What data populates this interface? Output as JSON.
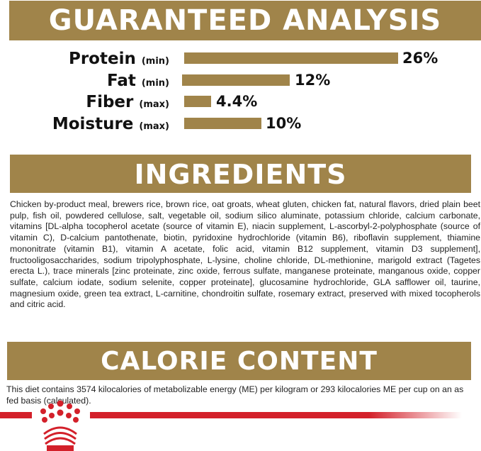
{
  "guaranteed_analysis": {
    "title": "GUARANTEED ANALYSIS",
    "rows": [
      {
        "name": "Protein",
        "qualifier": "(min)",
        "value": "26%",
        "percent": 26
      },
      {
        "name": "Fat",
        "qualifier": "(min)",
        "value": "12%",
        "percent": 12
      },
      {
        "name": "Fiber",
        "qualifier": "(max)",
        "value": "4.4%",
        "percent": 4.4
      },
      {
        "name": "Moisture",
        "qualifier": "(max)",
        "value": "10%",
        "percent": 10
      }
    ],
    "bar_color": "#a0844a"
  },
  "ingredients": {
    "title": "INGREDIENTS",
    "text": "Chicken by-product meal, brewers rice, brown rice, oat groats, wheat gluten, chicken fat, natural flavors, dried plain beet pulp, fish oil, powdered cellulose, salt, vegetable oil, sodium silico aluminate, potassium chloride, calcium carbonate, vitamins [DL-alpha tocopherol acetate (source of vitamin E), niacin supplement, L-ascorbyl-2-polyphosphate (source of vitamin C), D-calcium pantothenate, biotin, pyridoxine hydrochloride (vitamin B6), riboflavin supplement, thiamine mononitrate (vitamin B1), vitamin A acetate, folic acid, vitamin B12 supplement, vitamin D3 supplement], fructooligosaccharides, sodium tripolyphosphate, L-lysine, choline chloride, DL-methionine, marigold extract (Tagetes erecta L.), trace minerals [zinc proteinate, zinc oxide, ferrous sulfate, manganese proteinate, manganous oxide, copper sulfate, calcium iodate, sodium selenite, copper proteinate], glucosamine hydrochloride, GLA safflower oil, taurine, magnesium oxide, green tea extract, L-carnitine, chondroitin sulfate, rosemary extract, preserved with mixed tocopherols and citric acid."
  },
  "calorie_content": {
    "title": "CALORIE CONTENT",
    "text": "This diet contains 3574 kilocalories of metabolizable energy (ME) per kilogram or 293 kilocalories ME per cup on an as fed basis (calculated)."
  },
  "brand": {
    "logo": "royal-canin-crown-logo",
    "color": "#d3202a"
  }
}
